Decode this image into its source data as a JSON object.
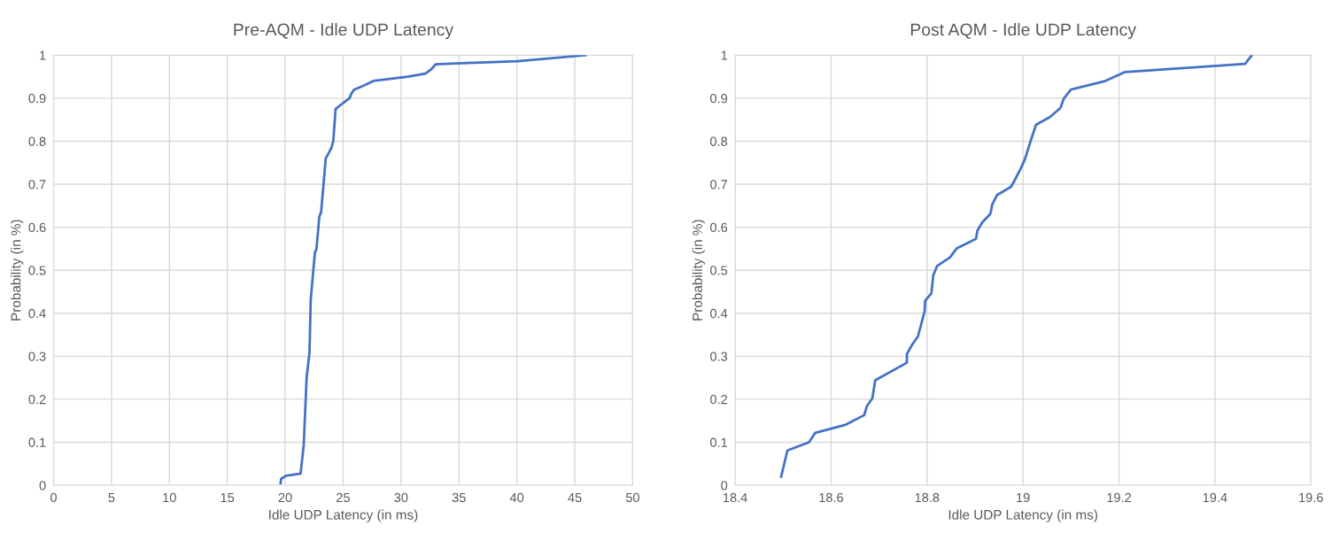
{
  "chart_data": [
    {
      "type": "line",
      "title": "Pre-AQM - Idle UDP Latency",
      "xlabel": "Idle UDP Latency (in ms)",
      "ylabel": "Probability (in %)",
      "xlim": [
        0,
        50
      ],
      "xticks": [
        0,
        5,
        10,
        15,
        20,
        25,
        30,
        35,
        40,
        45,
        50
      ],
      "ylim": [
        0,
        1
      ],
      "yticks": [
        0,
        0.1,
        0.2,
        0.3,
        0.4,
        0.5,
        0.6,
        0.7,
        0.8,
        0.9,
        1
      ],
      "grid": true,
      "marker": "none",
      "line_style": "solid",
      "series": [
        {
          "color": "#4472c4",
          "x": [
            19.6,
            19.65,
            20.05,
            21.33,
            21.6,
            21.85,
            22.1,
            22.2,
            22.56,
            22.7,
            22.95,
            23.1,
            23.5,
            23.7,
            24.0,
            24.15,
            24.35,
            25.05,
            25.56,
            25.7,
            25.95,
            26.85,
            27.6,
            30.56,
            32.1,
            32.6,
            33.0,
            40.05,
            45.95
          ],
          "values": [
            0.005,
            0.015,
            0.022,
            0.027,
            0.094,
            0.25,
            0.31,
            0.43,
            0.54,
            0.55,
            0.625,
            0.635,
            0.76,
            0.77,
            0.785,
            0.8,
            0.875,
            0.89,
            0.9,
            0.91,
            0.92,
            0.93,
            0.94,
            0.95,
            0.957,
            0.967,
            0.979,
            0.986,
            1.0
          ]
        }
      ]
    },
    {
      "type": "line",
      "title": "Post AQM - Idle UDP Latency",
      "xlabel": "Idle UDP Latency (in ms)",
      "ylabel": "Probability (in %)",
      "xlim": [
        18.4,
        19.6
      ],
      "xticks": [
        18.4,
        18.6,
        18.8,
        19,
        19.2,
        19.4,
        19.6
      ],
      "ylim": [
        0,
        1
      ],
      "yticks": [
        0,
        0.1,
        0.2,
        0.3,
        0.4,
        0.5,
        0.6,
        0.7,
        0.8,
        0.9,
        1
      ],
      "grid": true,
      "marker": "none",
      "line_style": "solid",
      "series": [
        {
          "color": "#4472c4",
          "x": [
            18.496,
            18.509,
            18.554,
            18.567,
            18.631,
            18.669,
            18.675,
            18.686,
            18.692,
            18.758,
            18.758,
            18.769,
            18.781,
            18.788,
            18.795,
            18.796,
            18.809,
            18.813,
            18.821,
            18.848,
            18.862,
            18.902,
            18.905,
            18.915,
            18.932,
            18.936,
            18.946,
            18.975,
            18.985,
            18.995,
            19.004,
            19.015,
            19.027,
            19.056,
            19.078,
            19.085,
            19.1,
            19.169,
            19.213,
            19.463,
            19.477
          ],
          "values": [
            0.02,
            0.081,
            0.1,
            0.122,
            0.141,
            0.163,
            0.185,
            0.202,
            0.244,
            0.285,
            0.305,
            0.327,
            0.346,
            0.375,
            0.405,
            0.429,
            0.446,
            0.488,
            0.51,
            0.53,
            0.551,
            0.573,
            0.592,
            0.611,
            0.631,
            0.653,
            0.675,
            0.694,
            0.714,
            0.736,
            0.758,
            0.797,
            0.838,
            0.856,
            0.877,
            0.899,
            0.92,
            0.939,
            0.961,
            0.98,
            1.0
          ]
        }
      ]
    }
  ]
}
